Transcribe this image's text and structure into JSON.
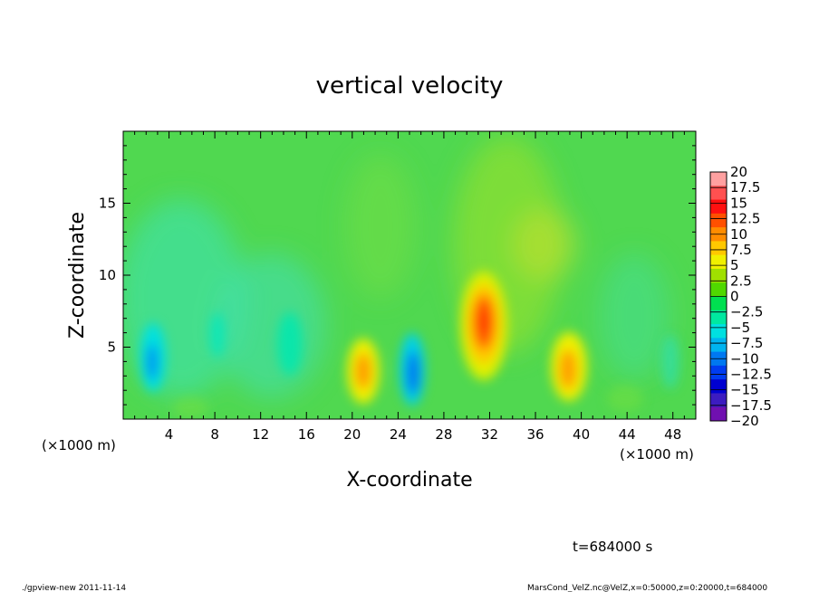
{
  "chart_data": {
    "type": "heatmap",
    "title": "vertical velocity",
    "xlabel": "X-coordinate",
    "ylabel": "Z-coordinate",
    "x_unit_left": "(×1000 m)",
    "x_unit_right": "(×1000 m)",
    "xlim": [
      0,
      50
    ],
    "ylim": [
      0,
      20
    ],
    "x_ticks": [
      4,
      8,
      12,
      16,
      20,
      24,
      28,
      32,
      36,
      40,
      44,
      48
    ],
    "y_ticks": [
      5,
      10,
      15
    ],
    "colorbar": {
      "levels": [
        "20",
        "17.5",
        "15",
        "12.5",
        "10",
        "7.5",
        "5",
        "2.5",
        "0",
        "−2.5",
        "−5",
        "−7.5",
        "−10",
        "−12.5",
        "−15",
        "−17.5",
        "−20"
      ],
      "range": [
        -20,
        20
      ],
      "colors": [
        "#ffa0a0",
        "#ff5050",
        "#ff1010",
        "#ff5000",
        "#ff8c00",
        "#ffc800",
        "#f0f000",
        "#a0e000",
        "#50d800",
        "#00e050",
        "#00e8a0",
        "#00e0e0",
        "#00b4f0",
        "#0078f0",
        "#003cf0",
        "#0000d0",
        "#3c1cc0",
        "#7010b0"
      ]
    },
    "features": [
      {
        "x": 2.8,
        "z": 4.2,
        "value": -8
      },
      {
        "x": 21.0,
        "z": 3.2,
        "value": 8
      },
      {
        "x": 25.2,
        "z": 2.8,
        "value": -11
      },
      {
        "x": 31.3,
        "z": 6.5,
        "value": 14
      },
      {
        "x": 38.8,
        "z": 3.8,
        "value": 8
      },
      {
        "x": 35.5,
        "z": 12.5,
        "value": 3
      },
      {
        "x": 14.5,
        "z": 5.0,
        "value": -4
      },
      {
        "x": 8.5,
        "z": 5.5,
        "value": -3
      }
    ]
  },
  "annotation": "t=684000 s",
  "footer_left": "./gpview-new   2011-11-14",
  "footer_right": "MarsCond_VelZ.nc@VelZ,x=0:50000,z=0:20000,t=684000"
}
